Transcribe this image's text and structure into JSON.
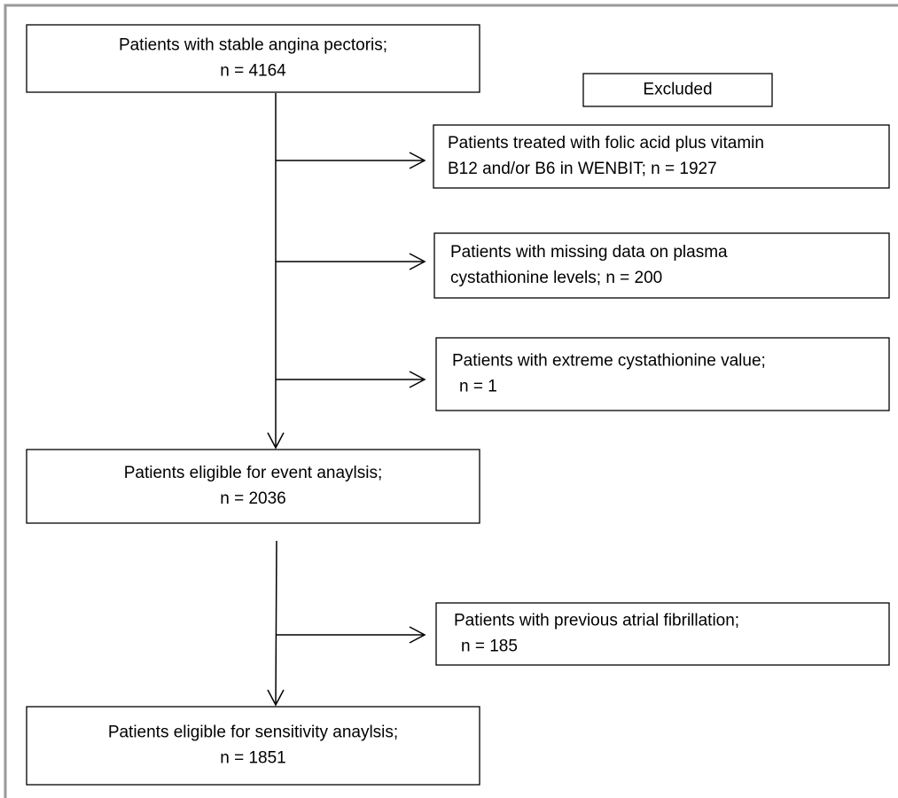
{
  "nodes": [
    {
      "lines": [
        "Patients with stable angina pectoris;",
        "n = 4164"
      ]
    },
    {
      "lines": [
        "Excluded"
      ]
    },
    {
      "lines": [
        "Patients treated with folic acid plus vitamin",
        "B12 and/or B6 in WENBIT; n = 1927"
      ]
    },
    {
      "lines": [
        "Patients with missing data on plasma",
        "cystathionine levels; n = 200"
      ]
    },
    {
      "lines": [
        "Patients with extreme cystathionine value;",
        "n = 1"
      ]
    },
    {
      "lines": [
        "Patients eligible for event anaylsis;",
        "n = 2036"
      ]
    },
    {
      "lines": [
        "Patients with previous atrial fibrillation;",
        "n = 185"
      ]
    },
    {
      "lines": [
        "Patients eligible for sensitivity anaylsis;",
        "n = 1851"
      ]
    }
  ]
}
